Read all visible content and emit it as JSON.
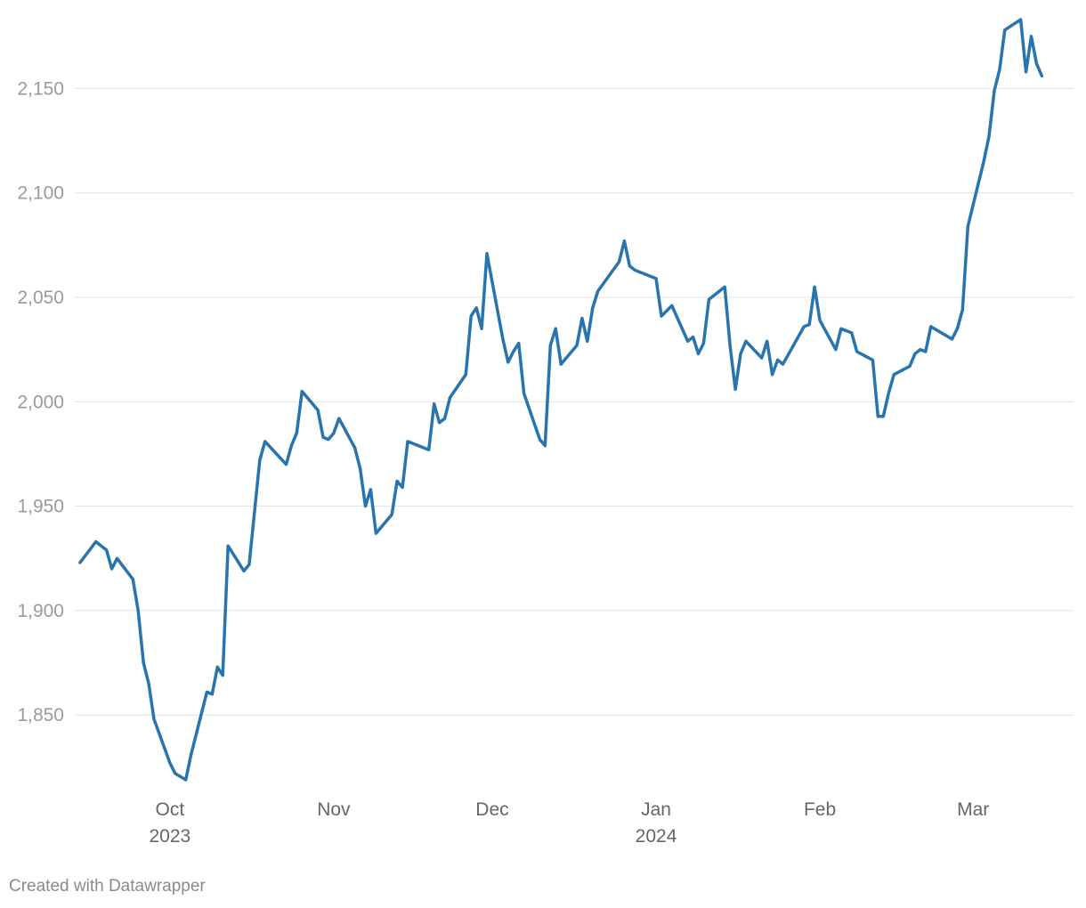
{
  "chart_data": {
    "type": "line",
    "title": "",
    "xlabel": "",
    "ylabel": "",
    "ylim": [
      1816,
      2183
    ],
    "xlim": [
      "2023-09-13",
      "2024-03-20"
    ],
    "grid": true,
    "y_ticks": [
      {
        "value": 1850,
        "label": "1,850"
      },
      {
        "value": 1900,
        "label": "1,900"
      },
      {
        "value": 1950,
        "label": "1,950"
      },
      {
        "value": 2000,
        "label": "2,000"
      },
      {
        "value": 2050,
        "label": "2,050"
      },
      {
        "value": 2100,
        "label": "2,100"
      },
      {
        "value": 2150,
        "label": "2,150"
      }
    ],
    "x_ticks": [
      {
        "date": "2023-10-01",
        "label": "Oct",
        "sublabel": "2023"
      },
      {
        "date": "2023-11-01",
        "label": "Nov",
        "sublabel": ""
      },
      {
        "date": "2023-12-01",
        "label": "Dec",
        "sublabel": ""
      },
      {
        "date": "2024-01-01",
        "label": "Jan",
        "sublabel": "2024"
      },
      {
        "date": "2024-02-01",
        "label": "Feb",
        "sublabel": ""
      },
      {
        "date": "2024-03-01",
        "label": "Mar",
        "sublabel": ""
      }
    ],
    "series": [
      {
        "color": "#2774ae",
        "points": [
          [
            "2023-09-14",
            1923
          ],
          [
            "2023-09-17",
            1933
          ],
          [
            "2023-09-18",
            1931
          ],
          [
            "2023-09-19",
            1929
          ],
          [
            "2023-09-20",
            1920
          ],
          [
            "2023-09-21",
            1925
          ],
          [
            "2023-09-24",
            1915
          ],
          [
            "2023-09-25",
            1900
          ],
          [
            "2023-09-26",
            1875
          ],
          [
            "2023-09-27",
            1865
          ],
          [
            "2023-09-28",
            1848
          ],
          [
            "2023-10-01",
            1827
          ],
          [
            "2023-10-02",
            1822
          ],
          [
            "2023-10-04",
            1819
          ],
          [
            "2023-10-05",
            1831
          ],
          [
            "2023-10-08",
            1861
          ],
          [
            "2023-10-09",
            1860
          ],
          [
            "2023-10-10",
            1873
          ],
          [
            "2023-10-11",
            1869
          ],
          [
            "2023-10-12",
            1931
          ],
          [
            "2023-10-15",
            1919
          ],
          [
            "2023-10-16",
            1922
          ],
          [
            "2023-10-18",
            1972
          ],
          [
            "2023-10-19",
            1981
          ],
          [
            "2023-10-23",
            1970
          ],
          [
            "2023-10-24",
            1979
          ],
          [
            "2023-10-25",
            1985
          ],
          [
            "2023-10-26",
            2005
          ],
          [
            "2023-10-29",
            1996
          ],
          [
            "2023-10-30",
            1983
          ],
          [
            "2023-10-31",
            1982
          ],
          [
            "2023-11-01",
            1985
          ],
          [
            "2023-11-02",
            1992
          ],
          [
            "2023-11-05",
            1978
          ],
          [
            "2023-11-06",
            1968
          ],
          [
            "2023-11-07",
            1950
          ],
          [
            "2023-11-08",
            1958
          ],
          [
            "2023-11-09",
            1937
          ],
          [
            "2023-11-12",
            1946
          ],
          [
            "2023-11-13",
            1962
          ],
          [
            "2023-11-14",
            1959
          ],
          [
            "2023-11-15",
            1981
          ],
          [
            "2023-11-19",
            1977
          ],
          [
            "2023-11-20",
            1999
          ],
          [
            "2023-11-21",
            1990
          ],
          [
            "2023-11-22",
            1992
          ],
          [
            "2023-11-23",
            2002
          ],
          [
            "2023-11-26",
            2013
          ],
          [
            "2023-11-27",
            2041
          ],
          [
            "2023-11-28",
            2045
          ],
          [
            "2023-11-29",
            2035
          ],
          [
            "2023-11-30",
            2071
          ],
          [
            "2023-12-03",
            2030
          ],
          [
            "2023-12-04",
            2019
          ],
          [
            "2023-12-05",
            2024
          ],
          [
            "2023-12-06",
            2028
          ],
          [
            "2023-12-07",
            2004
          ],
          [
            "2023-12-10",
            1982
          ],
          [
            "2023-12-11",
            1979
          ],
          [
            "2023-12-12",
            2027
          ],
          [
            "2023-12-13",
            2035
          ],
          [
            "2023-12-14",
            2018
          ],
          [
            "2023-12-17",
            2027
          ],
          [
            "2023-12-18",
            2040
          ],
          [
            "2023-12-19",
            2029
          ],
          [
            "2023-12-20",
            2045
          ],
          [
            "2023-12-21",
            2053
          ],
          [
            "2023-12-25",
            2067
          ],
          [
            "2023-12-26",
            2077
          ],
          [
            "2023-12-27",
            2065
          ],
          [
            "2023-12-28",
            2063
          ],
          [
            "2024-01-01",
            2059
          ],
          [
            "2024-01-02",
            2041
          ],
          [
            "2024-01-04",
            2046
          ],
          [
            "2024-01-07",
            2029
          ],
          [
            "2024-01-08",
            2031
          ],
          [
            "2024-01-09",
            2023
          ],
          [
            "2024-01-10",
            2028
          ],
          [
            "2024-01-11",
            2049
          ],
          [
            "2024-01-14",
            2055
          ],
          [
            "2024-01-15",
            2027
          ],
          [
            "2024-01-16",
            2006
          ],
          [
            "2024-01-17",
            2023
          ],
          [
            "2024-01-18",
            2029
          ],
          [
            "2024-01-21",
            2021
          ],
          [
            "2024-01-22",
            2029
          ],
          [
            "2024-01-23",
            2013
          ],
          [
            "2024-01-24",
            2020
          ],
          [
            "2024-01-25",
            2018
          ],
          [
            "2024-01-29",
            2036
          ],
          [
            "2024-01-30",
            2037
          ],
          [
            "2024-01-31",
            2055
          ],
          [
            "2024-02-01",
            2039
          ],
          [
            "2024-02-04",
            2025
          ],
          [
            "2024-02-05",
            2035
          ],
          [
            "2024-02-07",
            2033
          ],
          [
            "2024-02-08",
            2024
          ],
          [
            "2024-02-11",
            2020
          ],
          [
            "2024-02-12",
            1993
          ],
          [
            "2024-02-13",
            1993
          ],
          [
            "2024-02-14",
            2004
          ],
          [
            "2024-02-15",
            2013
          ],
          [
            "2024-02-18",
            2017
          ],
          [
            "2024-02-19",
            2023
          ],
          [
            "2024-02-20",
            2025
          ],
          [
            "2024-02-21",
            2024
          ],
          [
            "2024-02-22",
            2036
          ],
          [
            "2024-02-26",
            2030
          ],
          [
            "2024-02-27",
            2035
          ],
          [
            "2024-02-28",
            2044
          ],
          [
            "2024-02-29",
            2084
          ],
          [
            "2024-03-03",
            2115
          ],
          [
            "2024-03-04",
            2127
          ],
          [
            "2024-03-05",
            2149
          ],
          [
            "2024-03-06",
            2159
          ],
          [
            "2024-03-07",
            2178
          ],
          [
            "2024-03-10",
            2183
          ],
          [
            "2024-03-11",
            2158
          ],
          [
            "2024-03-12",
            2175
          ],
          [
            "2024-03-13",
            2162
          ],
          [
            "2024-03-14",
            2156
          ]
        ]
      }
    ]
  },
  "footer": {
    "credit": "Created with Datawrapper"
  }
}
